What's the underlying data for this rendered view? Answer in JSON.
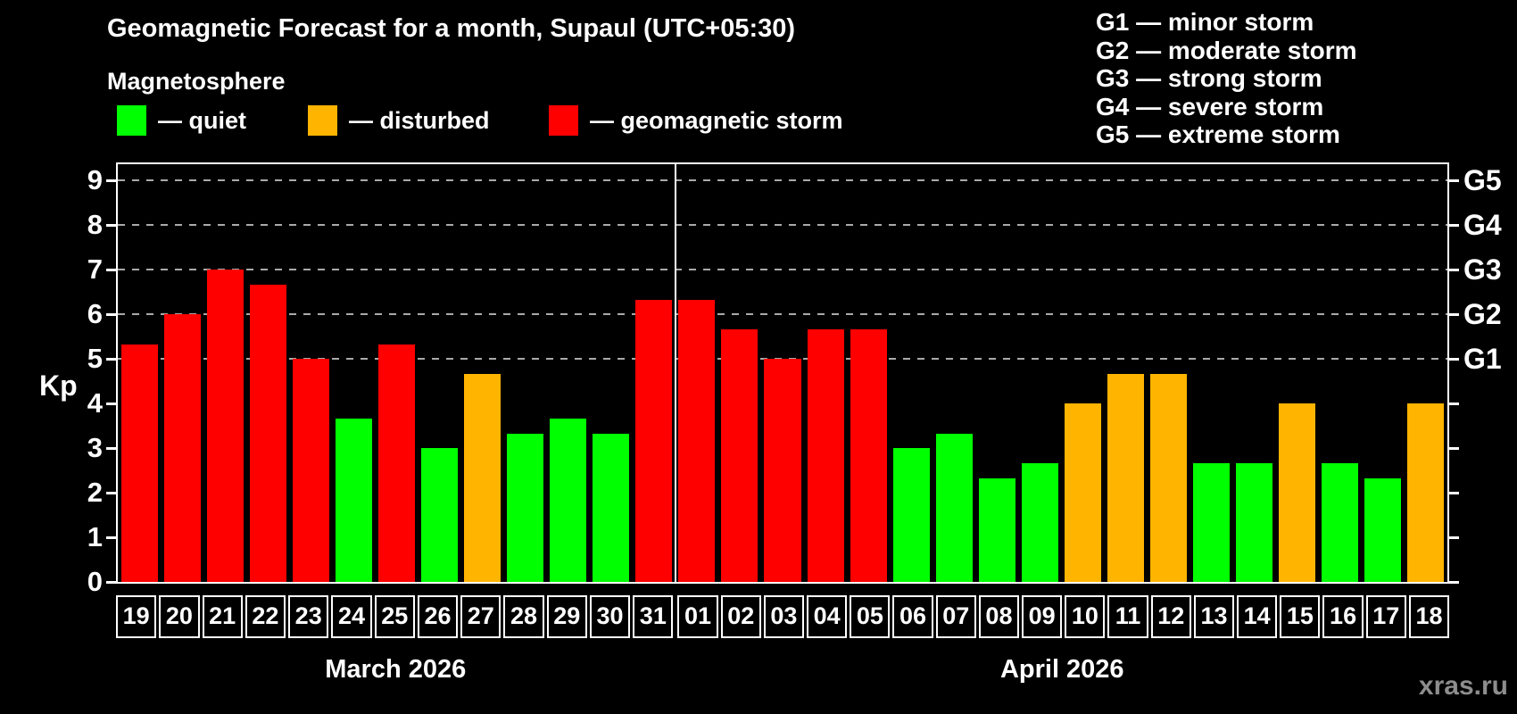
{
  "page": {
    "background": "#000000"
  },
  "chart_data": {
    "type": "bar",
    "title": "Geomagnetic Forecast for a month, Supaul (UTC+05:30)",
    "subtitle": "Magnetosphere",
    "ylabel": "Kp",
    "ylim": [
      0,
      9.36
    ],
    "yticks": [
      0,
      1,
      2,
      3,
      4,
      5,
      6,
      7,
      8,
      9
    ],
    "grid_levels": [
      5,
      6,
      7,
      8,
      9
    ],
    "grid_style": "dashed",
    "legend_position": "top-left",
    "right_axis": {
      "levels": [
        5,
        6,
        7,
        8,
        9
      ],
      "labels": [
        "G1",
        "G2",
        "G3",
        "G4",
        "G5"
      ]
    },
    "colors": {
      "quiet": "#00ff00",
      "disturbed": "#ffb400",
      "storm": "#ff0000",
      "grid": "#aaaaaa",
      "frame": "#ffffff"
    },
    "legend": [
      {
        "key": "quiet",
        "label": "— quiet",
        "color": "#00ff00"
      },
      {
        "key": "disturbed",
        "label": "— disturbed",
        "color": "#ffb400"
      },
      {
        "key": "storm",
        "label": "— geomagnetic storm",
        "color": "#ff0000"
      }
    ],
    "g_legend": [
      "G1 — minor storm",
      "G2 — moderate storm",
      "G3 — strong storm",
      "G4 — severe storm",
      "G5 — extreme storm"
    ],
    "months": [
      {
        "label": "March 2026",
        "days": [
          {
            "date": "19",
            "kp": 5.33,
            "state": "storm"
          },
          {
            "date": "20",
            "kp": 6.0,
            "state": "storm"
          },
          {
            "date": "21",
            "kp": 7.0,
            "state": "storm"
          },
          {
            "date": "22",
            "kp": 6.67,
            "state": "storm"
          },
          {
            "date": "23",
            "kp": 5.0,
            "state": "storm"
          },
          {
            "date": "24",
            "kp": 3.67,
            "state": "quiet"
          },
          {
            "date": "25",
            "kp": 5.33,
            "state": "storm"
          },
          {
            "date": "26",
            "kp": 3.0,
            "state": "quiet"
          },
          {
            "date": "27",
            "kp": 4.67,
            "state": "disturbed"
          },
          {
            "date": "28",
            "kp": 3.33,
            "state": "quiet"
          },
          {
            "date": "29",
            "kp": 3.67,
            "state": "quiet"
          },
          {
            "date": "30",
            "kp": 3.33,
            "state": "quiet"
          },
          {
            "date": "31",
            "kp": 6.33,
            "state": "storm"
          }
        ]
      },
      {
        "label": "April 2026",
        "days": [
          {
            "date": "01",
            "kp": 6.33,
            "state": "storm"
          },
          {
            "date": "02",
            "kp": 5.67,
            "state": "storm"
          },
          {
            "date": "03",
            "kp": 5.0,
            "state": "storm"
          },
          {
            "date": "04",
            "kp": 5.67,
            "state": "storm"
          },
          {
            "date": "05",
            "kp": 5.67,
            "state": "storm"
          },
          {
            "date": "06",
            "kp": 3.0,
            "state": "quiet"
          },
          {
            "date": "07",
            "kp": 3.33,
            "state": "quiet"
          },
          {
            "date": "08",
            "kp": 2.33,
            "state": "quiet"
          },
          {
            "date": "09",
            "kp": 2.67,
            "state": "quiet"
          },
          {
            "date": "10",
            "kp": 4.0,
            "state": "disturbed"
          },
          {
            "date": "11",
            "kp": 4.67,
            "state": "disturbed"
          },
          {
            "date": "12",
            "kp": 4.67,
            "state": "disturbed"
          },
          {
            "date": "13",
            "kp": 2.67,
            "state": "quiet"
          },
          {
            "date": "14",
            "kp": 2.67,
            "state": "quiet"
          },
          {
            "date": "15",
            "kp": 4.0,
            "state": "disturbed"
          },
          {
            "date": "16",
            "kp": 2.67,
            "state": "quiet"
          },
          {
            "date": "17",
            "kp": 2.33,
            "state": "quiet"
          },
          {
            "date": "18",
            "kp": 4.0,
            "state": "disturbed"
          }
        ]
      }
    ],
    "watermark": "xras.ru"
  }
}
